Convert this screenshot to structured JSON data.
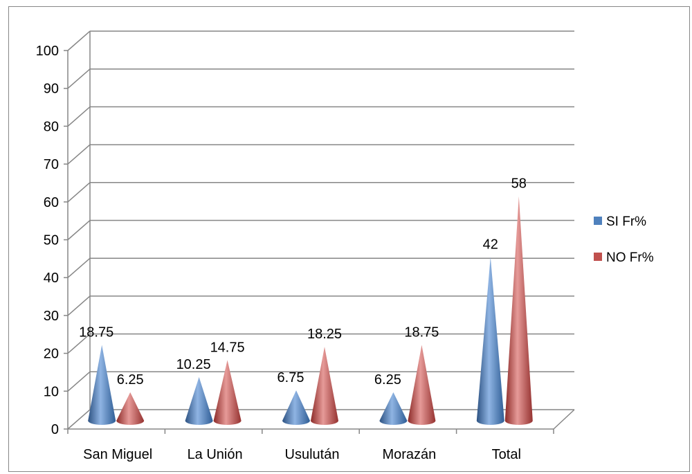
{
  "chart_data": {
    "type": "bar",
    "categories": [
      "San Miguel",
      "La Unión",
      "Usulután",
      "Morazán",
      "Total"
    ],
    "series": [
      {
        "name": "SI Fr%",
        "values": [
          18.75,
          10.25,
          6.75,
          6.25,
          42
        ],
        "labels": [
          "18.75",
          "10.25",
          "6.75",
          "6.25",
          "42"
        ],
        "color": "#4f81bd"
      },
      {
        "name": "NO Fr%",
        "values": [
          6.25,
          14.75,
          18.25,
          18.75,
          58
        ],
        "labels": [
          "6.25",
          "14.75",
          "18.25",
          "18.75",
          "58"
        ],
        "color": "#c0504d"
      }
    ],
    "ylim": [
      0,
      100
    ],
    "yticks": [
      0,
      10,
      20,
      30,
      40,
      50,
      60,
      70,
      80,
      90,
      100
    ],
    "shape": "cone",
    "grid": true,
    "legend": "right"
  }
}
